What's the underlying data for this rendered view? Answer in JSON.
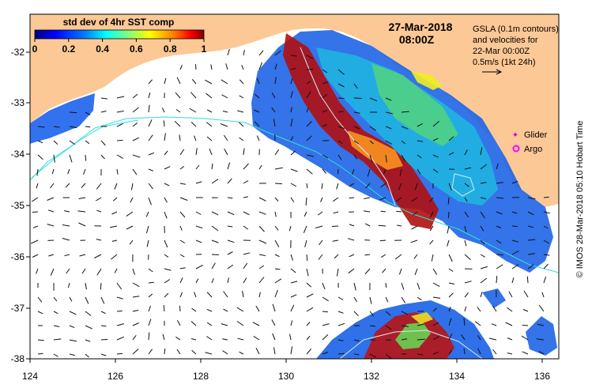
{
  "header": {
    "date": "27-Mar-2018",
    "time": "08:00Z"
  },
  "colorbar": {
    "title": "std dev of 4hr SST comp",
    "ticks": [
      "0",
      "0.2",
      "0.4",
      "0.6",
      "0.8",
      "1"
    ],
    "colors": [
      "#00007f",
      "#0000ff",
      "#007fff",
      "#00ffff",
      "#7fff7f",
      "#ffff00",
      "#ff7f00",
      "#ff0000",
      "#7f0000"
    ]
  },
  "legend": {
    "gsla_lines": [
      "GSLA (0.1m contours)",
      "and velocities for",
      "22-Mar 00:00Z",
      "0.5m/s (1kt 24h)"
    ],
    "glider_label": "Glider",
    "argo_label": "Argo",
    "glider_color": "#cc00cc",
    "argo_color": "#ff00ff"
  },
  "axes": {
    "x_ticks": [
      "124",
      "126",
      "128",
      "130",
      "132",
      "134",
      "136"
    ],
    "y_ticks": [
      "-32",
      "-33",
      "-34",
      "-35",
      "-36",
      "-37",
      "-38"
    ]
  },
  "credit": "© IMOS 28-Mar-2018 05:10 Hobart Time",
  "colors": {
    "land": "#fcc896",
    "ocean": "#ffffff",
    "contour": "#33dddd"
  }
}
